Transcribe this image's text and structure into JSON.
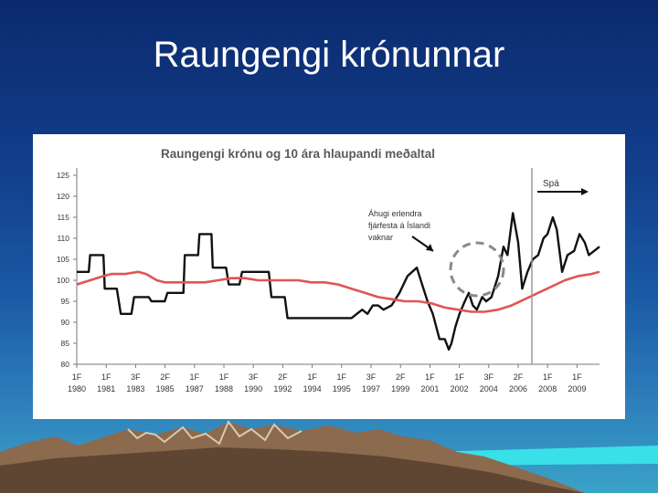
{
  "slide": {
    "title": "Raungengi krónunnar"
  },
  "chart_data": {
    "type": "line",
    "title": "Raungengi krónu og 10 ára hlaupandi meðaltal",
    "xlabel": "",
    "ylabel": "",
    "ylim": [
      80,
      125
    ],
    "yticks": [
      "80",
      "85",
      "90",
      "95",
      "100",
      "105",
      "110",
      "115",
      "120",
      "125"
    ],
    "xlim": [
      0,
      18
    ],
    "xticks_top": [
      "1F",
      "1F",
      "3F",
      "2F",
      "1F",
      "1F",
      "3F",
      "2F",
      "1F",
      "1F",
      "3F",
      "2F",
      "1F",
      "1F",
      "3F",
      "2F",
      "1F",
      "1F"
    ],
    "xticks_bottom": [
      "1980",
      "1981",
      "1983",
      "1985",
      "1987",
      "1988",
      "1990",
      "1992",
      "1994",
      "1995",
      "1997",
      "1999",
      "2001",
      "2002",
      "2004",
      "2006",
      "2008",
      "2009"
    ],
    "grid": false,
    "legend": "none",
    "series": [
      {
        "color": "#111111",
        "values": [
          [
            0,
            102
          ],
          [
            0.45,
            102
          ],
          [
            0.5,
            106
          ],
          [
            1.0,
            106
          ],
          [
            1.05,
            98
          ],
          [
            1.5,
            98
          ],
          [
            1.65,
            92
          ],
          [
            2.05,
            92
          ],
          [
            2.15,
            96
          ],
          [
            2.7,
            96
          ],
          [
            2.8,
            95
          ],
          [
            3.3,
            95
          ],
          [
            3.4,
            97
          ],
          [
            4.0,
            97
          ],
          [
            4.05,
            106
          ],
          [
            4.55,
            106
          ],
          [
            4.6,
            111
          ],
          [
            5.05,
            111
          ],
          [
            5.1,
            103
          ],
          [
            5.6,
            103
          ],
          [
            5.7,
            99
          ],
          [
            6.1,
            99
          ],
          [
            6.2,
            102
          ],
          [
            7.2,
            102
          ],
          [
            7.3,
            96
          ],
          [
            7.8,
            96
          ],
          [
            7.9,
            91
          ],
          [
            9.2,
            91
          ],
          [
            9.7,
            91
          ],
          [
            10.3,
            91
          ],
          [
            10.7,
            93
          ],
          [
            10.9,
            92
          ],
          [
            11.1,
            94
          ],
          [
            11.3,
            94
          ],
          [
            11.5,
            93
          ],
          [
            11.8,
            94
          ],
          [
            12.1,
            97
          ],
          [
            12.4,
            101
          ],
          [
            12.75,
            103
          ],
          [
            12.95,
            99
          ],
          [
            13.15,
            95
          ],
          [
            13.35,
            92
          ],
          [
            13.6,
            86
          ],
          [
            13.8,
            86
          ],
          [
            13.95,
            83.5
          ],
          [
            14.05,
            85
          ],
          [
            14.2,
            89
          ],
          [
            14.35,
            92
          ],
          [
            14.55,
            95
          ],
          [
            14.7,
            97
          ],
          [
            14.85,
            94
          ],
          [
            15.0,
            93
          ],
          [
            15.2,
            96
          ],
          [
            15.35,
            95
          ],
          [
            15.55,
            96
          ],
          [
            15.8,
            101
          ],
          [
            16.0,
            108
          ],
          [
            16.15,
            106
          ],
          [
            16.35,
            116
          ],
          [
            16.55,
            109
          ],
          [
            16.7,
            98
          ],
          [
            16.9,
            102
          ],
          [
            17.1,
            105
          ],
          [
            17.3,
            106
          ],
          [
            17.5,
            110
          ],
          [
            17.65,
            111
          ],
          [
            17.85,
            115
          ],
          [
            18.0,
            112
          ],
          [
            18.2,
            102
          ],
          [
            18.4,
            106
          ],
          [
            18.65,
            107
          ],
          [
            18.85,
            111
          ],
          [
            19.05,
            109
          ],
          [
            19.2,
            106
          ],
          [
            19.4,
            107
          ],
          [
            19.6,
            108
          ]
        ]
      },
      {
        "color": "#e05555",
        "values": [
          [
            0,
            99
          ],
          [
            0.5,
            100
          ],
          [
            1.0,
            101
          ],
          [
            1.3,
            101.5
          ],
          [
            1.8,
            101.5
          ],
          [
            2.3,
            102
          ],
          [
            2.6,
            101.5
          ],
          [
            3.0,
            100
          ],
          [
            3.3,
            99.5
          ],
          [
            3.8,
            99.5
          ],
          [
            4.3,
            99.5
          ],
          [
            4.8,
            99.5
          ],
          [
            5.3,
            100
          ],
          [
            5.8,
            100.5
          ],
          [
            6.3,
            100.5
          ],
          [
            6.8,
            100
          ],
          [
            7.3,
            100
          ],
          [
            7.8,
            100
          ],
          [
            8.3,
            100
          ],
          [
            8.8,
            99.5
          ],
          [
            9.3,
            99.5
          ],
          [
            9.8,
            99
          ],
          [
            10.3,
            98
          ],
          [
            10.8,
            97
          ],
          [
            11.3,
            96
          ],
          [
            11.8,
            95.5
          ],
          [
            12.3,
            95
          ],
          [
            12.8,
            95
          ],
          [
            13.3,
            94.5
          ],
          [
            13.8,
            93.5
          ],
          [
            14.3,
            93
          ],
          [
            14.8,
            92.5
          ],
          [
            15.3,
            92.5
          ],
          [
            15.8,
            93
          ],
          [
            16.3,
            94
          ],
          [
            16.8,
            95.5
          ],
          [
            17.3,
            97
          ],
          [
            17.8,
            98.5
          ],
          [
            18.3,
            100
          ],
          [
            18.8,
            101
          ],
          [
            19.3,
            101.5
          ],
          [
            19.6,
            102
          ]
        ]
      }
    ],
    "annotations": [
      {
        "text_lines": [
          "Áhugi erlendra",
          "fjárfesta á Íslandi",
          "vaknar"
        ]
      },
      {
        "text": "Spá"
      }
    ]
  }
}
